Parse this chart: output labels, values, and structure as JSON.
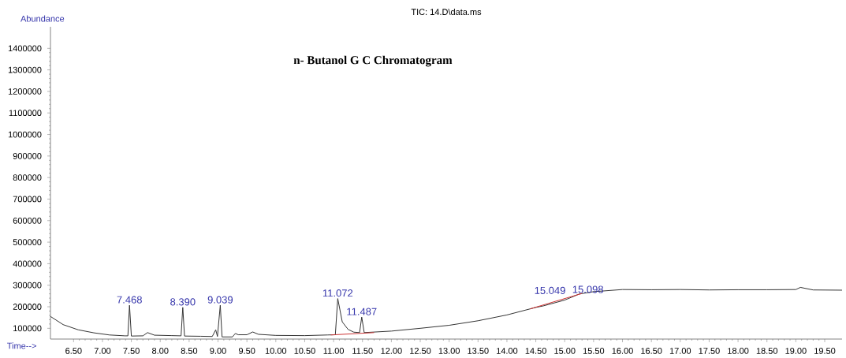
{
  "chart_data": {
    "type": "line",
    "title": "TIC: 14.D\\data.ms",
    "subtitle": "n- Butanol G C   Chromatogram",
    "xlabel": "Time-->",
    "ylabel": "Abundance",
    "xlim": [
      6.1,
      19.8
    ],
    "ylim": [
      50000,
      1500000
    ],
    "xticks": [
      {
        "value": 6.5,
        "label": "6.50"
      },
      {
        "value": 7,
        "label": "7.00"
      },
      {
        "value": 7.5,
        "label": "7.50"
      },
      {
        "value": 8,
        "label": "8.00"
      },
      {
        "value": 8.5,
        "label": "8.50"
      },
      {
        "value": 9,
        "label": "9.00"
      },
      {
        "value": 9.5,
        "label": "9.50"
      },
      {
        "value": 10,
        "label": "10.00"
      },
      {
        "value": 10.5,
        "label": "10.50"
      },
      {
        "value": 11,
        "label": "11.00"
      },
      {
        "value": 11.5,
        "label": "11.50"
      },
      {
        "value": 12,
        "label": "12.00"
      },
      {
        "value": 12.5,
        "label": "12.50"
      },
      {
        "value": 13,
        "label": "13.00"
      },
      {
        "value": 13.5,
        "label": "13.50"
      },
      {
        "value": 14,
        "label": "14.00"
      },
      {
        "value": 14.5,
        "label": "14.50"
      },
      {
        "value": 15,
        "label": "15.00"
      },
      {
        "value": 15.5,
        "label": "15.50"
      },
      {
        "value": 16,
        "label": "16.00"
      },
      {
        "value": 16.5,
        "label": "16.50"
      },
      {
        "value": 17,
        "label": "17.00"
      },
      {
        "value": 17.5,
        "label": "17.50"
      },
      {
        "value": 18,
        "label": "18.00"
      },
      {
        "value": 18.5,
        "label": "18.50"
      },
      {
        "value": 19,
        "label": "19.00"
      },
      {
        "value": 19.5,
        "label": "19.50"
      }
    ],
    "yticks": [
      100000,
      200000,
      300000,
      400000,
      500000,
      600000,
      700000,
      800000,
      900000,
      1000000,
      1100000,
      1200000,
      1300000,
      1400000
    ],
    "grid": false,
    "marker": "none",
    "series": [
      {
        "color": "#333333",
        "x": [
          6.1,
          6.32,
          6.58,
          6.85,
          7.12,
          7.39,
          7.44,
          7.468,
          7.5,
          7.7,
          7.78,
          7.9,
          8.2,
          8.36,
          8.39,
          8.42,
          8.7,
          8.9,
          8.96,
          8.99,
          9.039,
          9.07,
          9.25,
          9.3,
          9.35,
          9.5,
          9.6,
          9.7,
          10.0,
          10.5,
          10.9,
          11.03,
          11.072,
          11.15,
          11.25,
          11.35,
          11.45,
          11.487,
          11.53,
          12.0,
          12.5,
          13.0,
          13.5,
          14.0,
          14.5,
          14.63,
          15.0,
          15.25,
          15.5,
          16.0,
          16.5,
          17.0,
          17.5,
          18.0,
          18.5,
          19.0,
          19.08,
          19.3,
          19.8
        ],
        "values": [
          155000,
          117000,
          93000,
          79000,
          69000,
          65000,
          65000,
          207000,
          64000,
          65000,
          80000,
          68000,
          66000,
          65000,
          197000,
          64000,
          63000,
          62000,
          93000,
          62000,
          207000,
          60000,
          60000,
          76000,
          70000,
          70000,
          83000,
          72000,
          67000,
          66000,
          69000,
          70000,
          238000,
          130000,
          95000,
          82000,
          80000,
          152000,
          80000,
          87000,
          100000,
          114000,
          135000,
          162000,
          197000,
          204000,
          231000,
          259000,
          270000,
          280000,
          279000,
          280000,
          278000,
          279000,
          279000,
          280000,
          290000,
          278000,
          277000
        ]
      },
      {
        "color": "#cc3333",
        "x": [
          10.95,
          11.7,
          11.71,
          14.4,
          15.3
        ],
        "values": [
          69000,
          80000,
          null,
          190000,
          262000
        ]
      }
    ],
    "annotations": [
      {
        "text": "7.468",
        "x": 7.468,
        "y": 207000
      },
      {
        "text": "8.390",
        "x": 8.39,
        "y": 197000
      },
      {
        "text": "9.039",
        "x": 9.039,
        "y": 207000
      },
      {
        "text": "11.072",
        "x": 11.072,
        "y": 238000
      },
      {
        "text": "11.487",
        "x": 11.487,
        "y": 152000
      },
      {
        "text": "15.049",
        "x": 15.049,
        "y": 250000
      },
      {
        "text": "15.098",
        "x": 15.098,
        "y": 255000
      }
    ]
  }
}
